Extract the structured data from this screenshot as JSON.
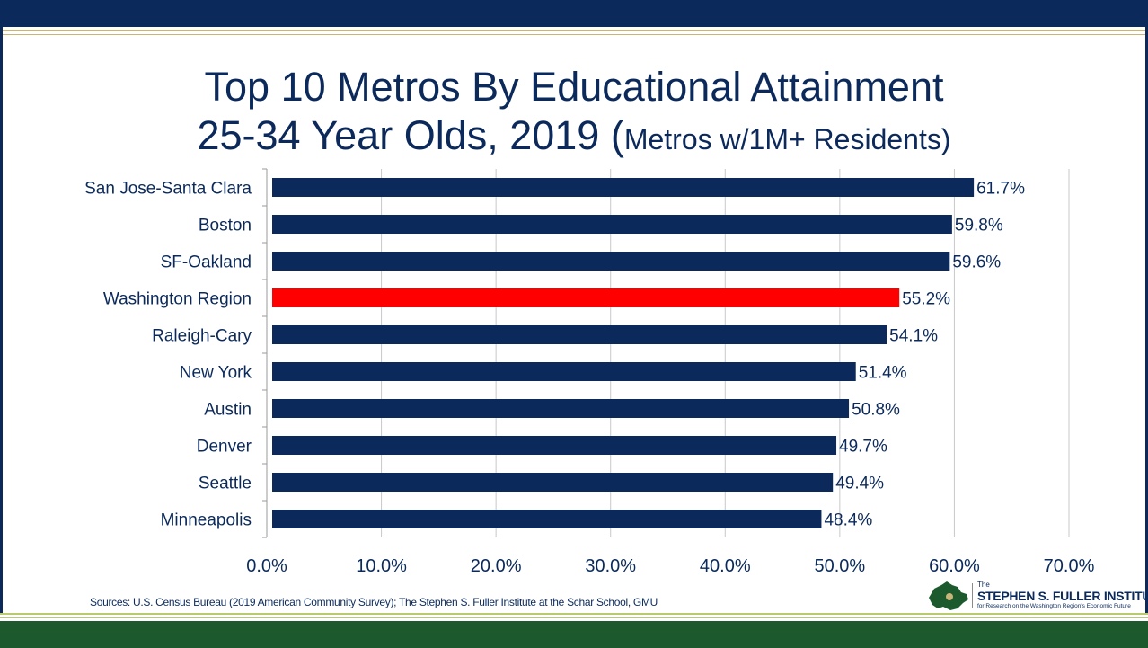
{
  "title_line1": "Top 10 Metros By Educational Attainment",
  "title_line2_main": "25-34 Year Olds, 2019 (",
  "title_line2_small": "Metros w/1M+ Residents)",
  "source": "Sources: U.S. Census Bureau (2019 American Community Survey); The Stephen S. Fuller Institute at the Schar School, GMU",
  "logo": {
    "the": "The",
    "name": "STEPHEN S. FULLER INSTITUTE",
    "subtitle": "for Research on the Washington Region's Economic Future"
  },
  "colors": {
    "bar": "#0b2a5b",
    "highlight": "#ff0000",
    "text": "#0b2a5b",
    "grid": "#c8c8c8",
    "logo_green": "#1c5a2d",
    "logo_gold": "#c9b57a"
  },
  "chart_data": {
    "type": "bar",
    "orientation": "horizontal",
    "categories": [
      "San Jose-Santa Clara",
      "Boston",
      "SF-Oakland",
      "Washington Region",
      "Raleigh-Cary",
      "New York",
      "Austin",
      "Denver",
      "Seattle",
      "Minneapolis"
    ],
    "values": [
      61.7,
      59.8,
      59.6,
      55.2,
      54.1,
      51.4,
      50.8,
      49.7,
      49.4,
      48.4
    ],
    "data_labels": [
      "61.7%",
      "59.8%",
      "59.6%",
      "55.2%",
      "54.1%",
      "51.4%",
      "50.8%",
      "49.7%",
      "49.4%",
      "48.4%"
    ],
    "highlight_category": "Washington Region",
    "xlim": [
      0,
      70
    ],
    "x_ticks": [
      0,
      10,
      20,
      30,
      40,
      50,
      60,
      70
    ],
    "x_tick_labels": [
      "0.0%",
      "10.0%",
      "20.0%",
      "30.0%",
      "40.0%",
      "50.0%",
      "60.0%",
      "70.0%"
    ],
    "grid": true,
    "legend": "none"
  }
}
